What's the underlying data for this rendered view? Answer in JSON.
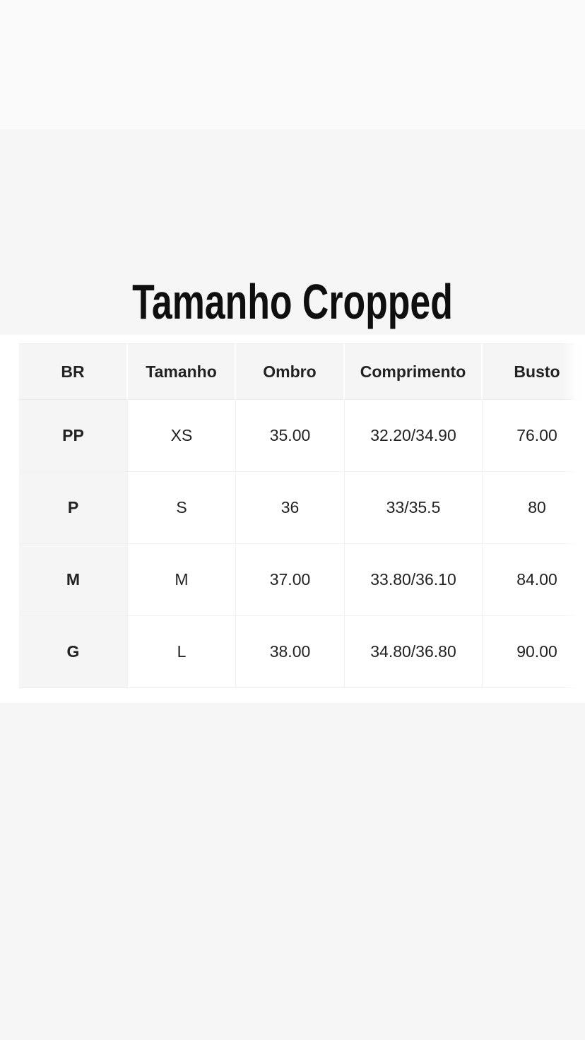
{
  "page": {
    "title": "Tamanho Cropped"
  },
  "size_table": {
    "columns": [
      "BR",
      "Tamanho",
      "Ombro",
      "Comprimento",
      "Busto"
    ],
    "rows": [
      [
        "PP",
        "XS",
        "35.00",
        "32.20/34.90",
        "76.00"
      ],
      [
        "P",
        "S",
        "36",
        "33/35.5",
        "80"
      ],
      [
        "M",
        "M",
        "37.00",
        "33.80/36.10",
        "84.00"
      ],
      [
        "G",
        "L",
        "38.00",
        "34.80/36.80",
        "90.00"
      ]
    ]
  },
  "colors": {
    "page_background": "#f6f6f7",
    "top_band_background": "#fafafa",
    "content_band_background": "#ffffff",
    "header_cell_background": "#f5f5f5",
    "text": "#222222"
  }
}
